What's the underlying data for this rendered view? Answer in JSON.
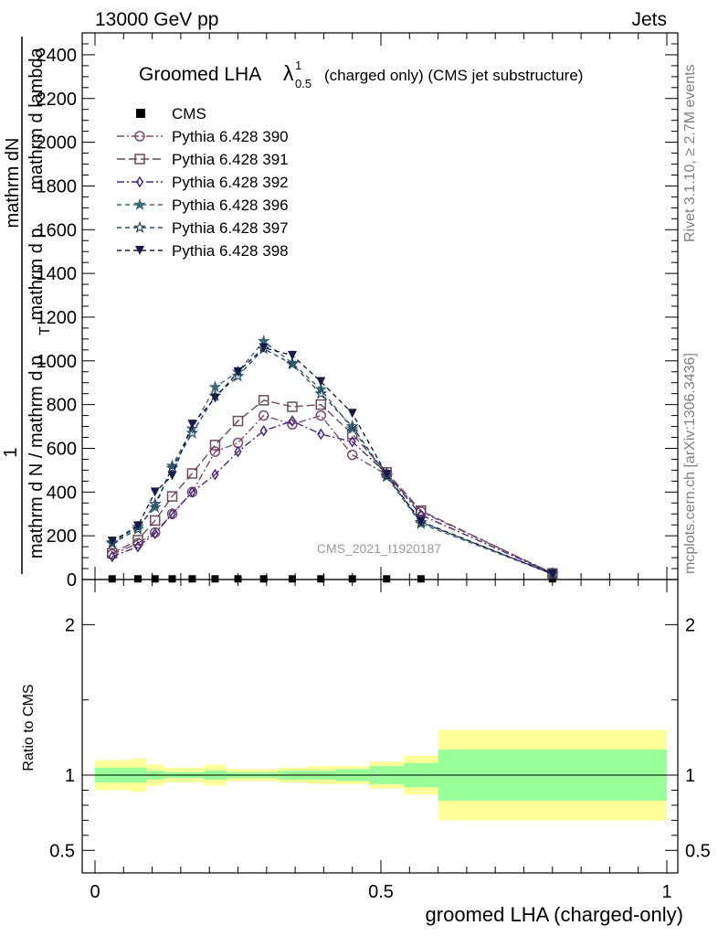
{
  "header": {
    "left": "13000 GeV pp",
    "right": "Jets"
  },
  "side_notes": {
    "rivet": "Rivet 3.1.10, ≥ 2.7M events",
    "mcplots": "mcplots.cern.ch [arXiv:1306.3436]"
  },
  "watermark": "CMS_2021_I1920187",
  "chart_data": {
    "type": "scatter",
    "title_main": "Groomed LHA",
    "title_symbol": "λ",
    "title_sup": "1",
    "title_sub": "0.5",
    "title_rest": "(charged only) (CMS jet substructure)",
    "ylabel_parts": [
      "1",
      "mathrm d N / mathrm d p",
      "mathrm dN",
      "T",
      "mathrm d p",
      "mathrm d lambda",
      "T"
    ],
    "ylabel_numerator": "mathrm dN",
    "ylabel_den_1": "mathrm d N / mathrm d p",
    "ylabel_den_2": "T",
    "ylabel_den_3": "mathrm d p",
    "ylabel_den_4": "mathrm d lambda",
    "ylabel_one": "1",
    "ratio_ylabel": "Ratio to CMS",
    "xlabel": "groomed LHA (charged-only)",
    "xlim": [
      0,
      1
    ],
    "ylim": [
      0,
      2500
    ],
    "ratio_ylim": [
      0.35,
      2.3
    ],
    "x_tick_labels": [
      "0",
      "0.5",
      "1"
    ],
    "y_tick_labels": [
      "0",
      "200",
      "400",
      "600",
      "800",
      "1000",
      "1200",
      "1400",
      "1600",
      "1800",
      "2000",
      "2200",
      "2400"
    ],
    "ratio_tick_labels": [
      "0.5",
      "1",
      "2"
    ],
    "x": [
      0.03,
      0.075,
      0.105,
      0.135,
      0.17,
      0.21,
      0.25,
      0.295,
      0.345,
      0.395,
      0.45,
      0.51,
      0.57,
      0.8
    ],
    "bin_edges": [
      0,
      0.06,
      0.09,
      0.12,
      0.15,
      0.19,
      0.23,
      0.27,
      0.32,
      0.37,
      0.42,
      0.48,
      0.54,
      0.6,
      1.0
    ],
    "cms": {
      "name": "CMS",
      "values": [
        3,
        3,
        3,
        3,
        3,
        3,
        3,
        3,
        3,
        3,
        3,
        3,
        3,
        3
      ],
      "band_inner": [
        0.05,
        0.05,
        0.03,
        0.02,
        0.02,
        0.03,
        0.02,
        0.02,
        0.03,
        0.03,
        0.04,
        0.06,
        0.08,
        0.17
      ],
      "band_outer": [
        0.1,
        0.11,
        0.07,
        0.05,
        0.05,
        0.07,
        0.04,
        0.04,
        0.05,
        0.06,
        0.06,
        0.09,
        0.13,
        0.3
      ]
    },
    "series": [
      {
        "name": "Pythia 6.428 390",
        "marker": "circle",
        "color": "#7a4a70",
        "dash": "8 3 2 3",
        "values": [
          115,
          165,
          215,
          300,
          400,
          585,
          625,
          750,
          710,
          750,
          570,
          480,
          310,
          30
        ]
      },
      {
        "name": "Pythia 6.428 391",
        "marker": "square",
        "color": "#6e4a58",
        "dash": "9 4",
        "values": [
          120,
          180,
          270,
          380,
          485,
          615,
          725,
          820,
          790,
          800,
          665,
          490,
          315,
          28
        ]
      },
      {
        "name": "Pythia 6.428 392",
        "marker": "diamond",
        "color": "#4a2a7a",
        "dash": "8 3 2 3",
        "values": [
          105,
          150,
          210,
          300,
          400,
          480,
          585,
          680,
          725,
          665,
          630,
          485,
          295,
          28
        ]
      },
      {
        "name": "Pythia 6.428 396",
        "marker": "star",
        "color": "#3a6a78",
        "dash": "5 4",
        "values": [
          170,
          240,
          330,
          520,
          690,
          880,
          950,
          1090,
          990,
          870,
          690,
          470,
          255,
          25
        ]
      },
      {
        "name": "Pythia 6.428 397",
        "marker": "star-open",
        "color": "#2a4a60",
        "dash": "5 4",
        "values": [
          165,
          230,
          345,
          510,
          670,
          840,
          930,
          1055,
          985,
          850,
          700,
          475,
          262,
          26
        ]
      },
      {
        "name": "Pythia 6.428 398",
        "marker": "triangle-down",
        "color": "#1a1a4a",
        "dash": "5 4",
        "values": [
          175,
          245,
          400,
          475,
          710,
          830,
          950,
          1060,
          1025,
          905,
          760,
          480,
          265,
          25
        ]
      }
    ],
    "colors": {
      "band_inner": "#99ff99",
      "band_outer": "#ffff99",
      "axis": "#000000"
    }
  }
}
